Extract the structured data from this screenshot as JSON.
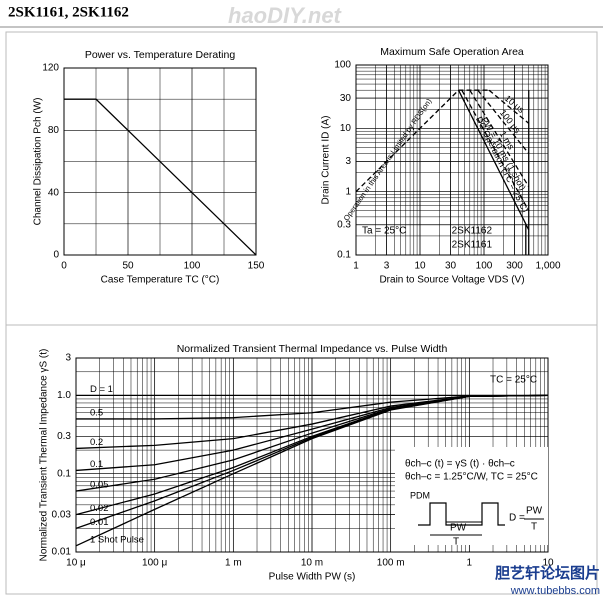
{
  "header": {
    "title": "2SK1161, 2SK1162",
    "watermark": "haoDIY.net"
  },
  "footer": {
    "site_name": "胆艺轩论坛图片",
    "url": "www.tubebbs.com"
  },
  "chart_data": [
    {
      "type": "line",
      "title": "Power vs. Temperature Derating",
      "x_label": "Case Temperature  TC  (°C)",
      "y_label": "Channel Dissipation  Pch  (W)",
      "x": [
        0,
        25,
        150
      ],
      "series": [
        {
          "color": "#000000",
          "values": [
            100,
            100,
            0
          ]
        }
      ],
      "xlim": [
        0,
        150
      ],
      "xticks": [
        0,
        50,
        100,
        150
      ],
      "ylim": [
        0,
        120
      ],
      "yticks": [
        0,
        40,
        80,
        120
      ],
      "grid": true
    },
    {
      "type": "line",
      "title": "Maximum Safe Operation Area",
      "x_label": "Drain to Source Voltage  VDS  (V)",
      "y_label": "Drain Current  ID  (A)",
      "xlog": true,
      "ylog": true,
      "grid": true,
      "xlim": [
        1,
        1000
      ],
      "xticks": [
        1,
        3,
        10,
        30,
        100,
        300,
        {
          "value": 1000,
          "label": "1,000"
        }
      ],
      "ylim": [
        0.1,
        100
      ],
      "yticks": [
        0.1,
        0.3,
        1,
        3,
        10,
        30,
        100
      ],
      "series": [
        {
          "color": "#000000",
          "dash": true,
          "x": [
            1,
            40
          ],
          "values": [
            1,
            40
          ]
        },
        {
          "color": "#000000",
          "dash": true,
          "x": [
            40,
            120
          ],
          "values": [
            40,
            40
          ]
        },
        {
          "name": "10 μs",
          "color": "#000000",
          "dash": true,
          "x": [
            120,
            500
          ],
          "values": [
            40,
            12
          ]
        },
        {
          "name": "100 μs",
          "color": "#000000",
          "dash": true,
          "x": [
            80,
            500
          ],
          "values": [
            40,
            4
          ]
        },
        {
          "name": "1 ms",
          "color": "#000000",
          "dash": true,
          "x": [
            60,
            500
          ],
          "values": [
            40,
            1.2
          ]
        },
        {
          "name": "PW = 10 ms (1 shot)",
          "color": "#000000",
          "dash": true,
          "x": [
            45,
            500
          ],
          "values": [
            40,
            0.5
          ]
        },
        {
          "name": "DC Operation (TC = 25°C)",
          "color": "#000000",
          "dash": false,
          "x": [
            40,
            500
          ],
          "values": [
            40,
            0.25
          ]
        },
        {
          "color": "#000000",
          "dash": false,
          "x": [
            500,
            500
          ],
          "values": [
            0.1,
            40
          ]
        },
        {
          "color": "#000000",
          "dash": false,
          "x": [
            450,
            450
          ],
          "values": [
            0.1,
            0.3
          ]
        }
      ],
      "annotations": [
        "Ta = 25°C",
        "2SK1162",
        "2SK1161",
        "Operation in this Area is Limited by RDS(on)"
      ]
    },
    {
      "type": "line",
      "title": "Normalized Transient Thermal Impedance vs. Pulse Width",
      "x_label": "Pulse Width  PW  (s)",
      "y_label": "Normalized Transient Thermal Impedance  γS  (t)",
      "xlog": true,
      "ylog": true,
      "grid": true,
      "xlim": [
        1e-05,
        10
      ],
      "xticks": [
        {
          "value": 1e-05,
          "label": "10 μ"
        },
        {
          "value": 0.0001,
          "label": "100 μ"
        },
        {
          "value": 0.001,
          "label": "1 m"
        },
        {
          "value": 0.01,
          "label": "10 m"
        },
        {
          "value": 0.1,
          "label": "100 m"
        },
        1,
        10
      ],
      "ylim": [
        0.01,
        3
      ],
      "yticks": [
        0.01,
        0.03,
        0.1,
        0.3,
        {
          "value": 1,
          "label": "1.0"
        },
        3
      ],
      "x": [
        1e-05,
        0.0001,
        0.001,
        0.01,
        0.1,
        1,
        10
      ],
      "series": [
        {
          "name": "D = 1",
          "color": "#000000",
          "values": [
            1,
            1,
            1,
            1,
            1,
            1,
            1
          ]
        },
        {
          "name": "0.5",
          "color": "#000000",
          "values": [
            0.5,
            0.5,
            0.52,
            0.6,
            0.82,
            0.98,
            1
          ]
        },
        {
          "name": "0.2",
          "color": "#000000",
          "values": [
            0.21,
            0.23,
            0.28,
            0.43,
            0.73,
            0.97,
            1
          ]
        },
        {
          "name": "0.1",
          "color": "#000000",
          "values": [
            0.11,
            0.13,
            0.2,
            0.37,
            0.7,
            0.97,
            1
          ]
        },
        {
          "name": "0.05",
          "color": "#000000",
          "values": [
            0.06,
            0.085,
            0.15,
            0.33,
            0.68,
            0.97,
            1
          ]
        },
        {
          "name": "0.02",
          "color": "#000000",
          "values": [
            0.03,
            0.055,
            0.12,
            0.3,
            0.67,
            0.97,
            1
          ]
        },
        {
          "name": "0.01",
          "color": "#000000",
          "values": [
            0.02,
            0.045,
            0.11,
            0.29,
            0.66,
            0.97,
            1
          ]
        },
        {
          "name": "1 Shot Pulse",
          "color": "#000000",
          "values": [
            0.012,
            0.035,
            0.1,
            0.28,
            0.65,
            0.97,
            1
          ]
        }
      ],
      "annotations": [
        "TC = 25°C",
        "θch–c (t) = γS (t) · θch–c",
        "θch–c = 1.25°C/W, TC = 25°C",
        "PDM",
        "PW",
        "T",
        "D =",
        "PW",
        "T"
      ]
    }
  ]
}
